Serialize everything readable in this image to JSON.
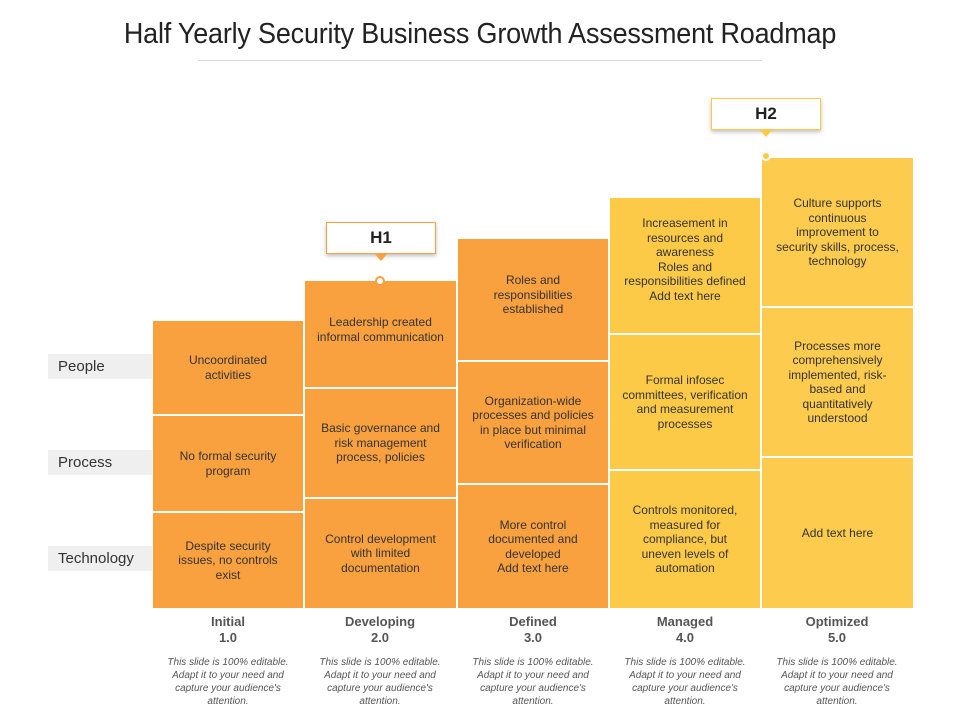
{
  "title": "Half Yearly Security Business Growth  Assessment Roadmap",
  "row_labels": [
    "People",
    "Process",
    "Technology"
  ],
  "milestones": [
    {
      "label": "H1",
      "stage": "Developing"
    },
    {
      "label": "H2",
      "stage": "Optimized"
    }
  ],
  "stages": [
    {
      "name": "Initial",
      "version": "1.0",
      "people": "Uncoordinated activities",
      "process": "No formal security program",
      "technology": "Despite security issues, no controls exist",
      "note": "This slide is 100% editable. Adapt it to your need and capture your audience's attention."
    },
    {
      "name": "Developing",
      "version": "2.0",
      "people": "Leadership created informal communication",
      "process": "Basic governance and risk management process, policies",
      "technology": "Control development with limited documentation",
      "note": "This slide is 100% editable. Adapt it to your need and capture your audience's attention."
    },
    {
      "name": "Defined",
      "version": "3.0",
      "people": "Roles and responsibilities established",
      "process": "Organization-wide processes and policies in place but minimal verification",
      "technology": "More control documented and developed\nAdd text here",
      "note": "This slide is 100% editable. Adapt it to your need and capture your audience's attention."
    },
    {
      "name": "Managed",
      "version": "4.0",
      "people": "Increasement in resources and awareness\nRoles and responsibilities defined\nAdd text here",
      "process": "Formal infosec committees, verification and measurement processes",
      "technology": "Controls monitored, measured for compliance, but uneven levels of automation",
      "note": "This slide is 100% editable. Adapt it to your need and capture your audience's attention."
    },
    {
      "name": "Optimized",
      "version": "5.0",
      "people": "Culture supports continuous improvement to security skills, process, technology",
      "process": "Processes more comprehensively implemented, risk-based and quantitatively understood",
      "technology": "Add text here",
      "note": "This slide is 100% editable. Adapt it to your need and capture your audience's attention."
    }
  ],
  "colors": {
    "orange": "#F9A03F",
    "yellow": "#FDCA48",
    "label_bg": "#EFEFEF"
  }
}
